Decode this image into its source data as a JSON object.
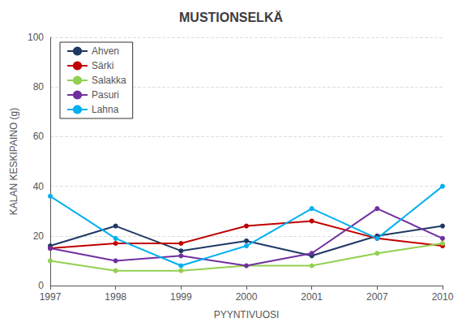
{
  "chart_data": {
    "type": "line",
    "title": "MUSTIONSELKÄ",
    "x_label": "PYYNTIVUOSI",
    "y_label": "KALAN KESKIPAINO (g)",
    "categories": [
      "1997",
      "1998",
      "1999",
      "2000",
      "2001",
      "2007",
      "2010"
    ],
    "series": [
      {
        "name": "Ahven",
        "color": "#1f3864",
        "marker": "circle",
        "values": [
          16,
          24,
          14,
          18,
          12,
          20,
          24
        ]
      },
      {
        "name": "Särki",
        "color": "#c00000",
        "marker": "circle",
        "values": [
          15,
          17,
          17,
          24,
          26,
          19,
          16
        ]
      },
      {
        "name": "Salakka",
        "color": "#92d050",
        "marker": "circle",
        "values": [
          10,
          6,
          6,
          8,
          8,
          13,
          17
        ]
      },
      {
        "name": "Pasuri",
        "color": "#7030a0",
        "marker": "circle",
        "values": [
          15,
          10,
          12,
          8,
          13,
          31,
          19
        ]
      },
      {
        "name": "Lahna",
        "color": "#00b0f0",
        "marker": "circle",
        "values": [
          36,
          19,
          8,
          16,
          31,
          19,
          40
        ]
      }
    ],
    "ylim": [
      0,
      100
    ],
    "yticks": [
      0,
      20,
      40,
      60,
      80,
      100
    ],
    "grid": true,
    "legend": "upper left"
  }
}
